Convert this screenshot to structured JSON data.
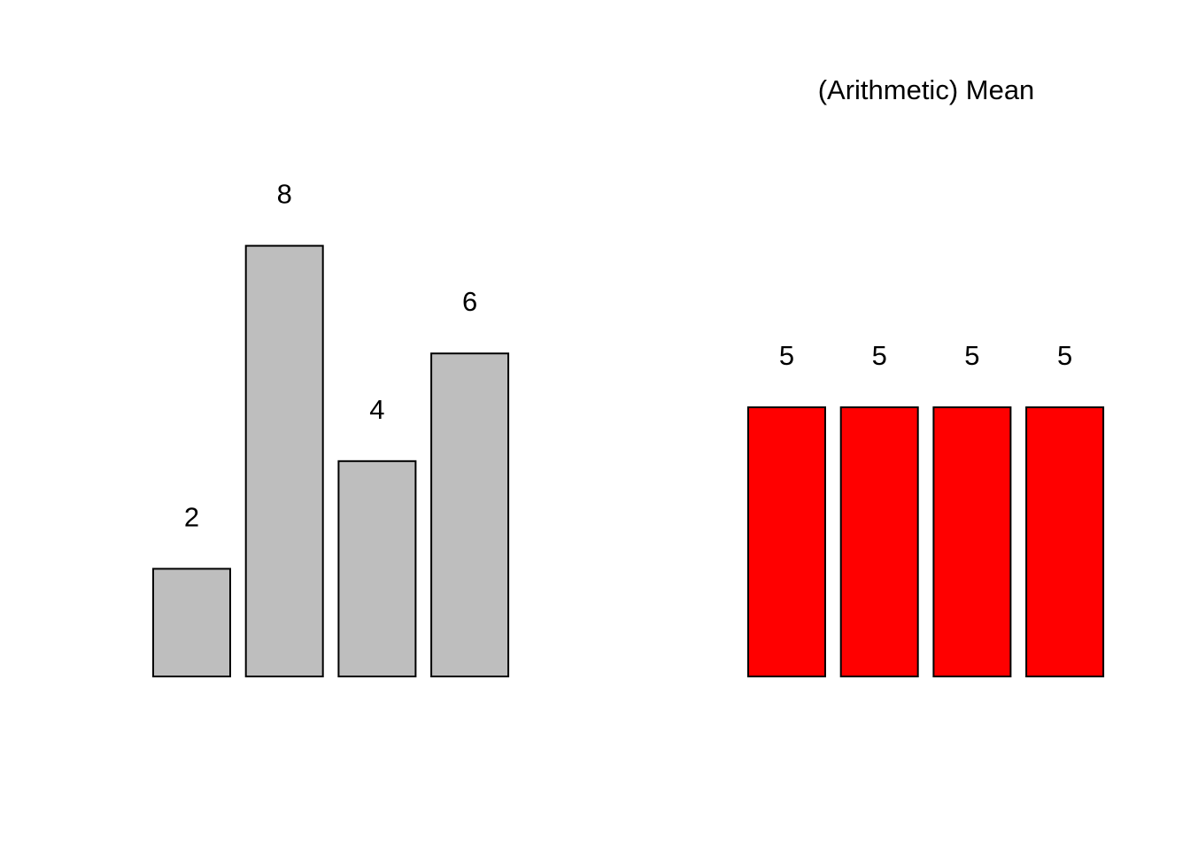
{
  "chart_data": [
    {
      "type": "bar",
      "title": "",
      "xlabel": "",
      "ylabel": "",
      "values": [
        2,
        8,
        4,
        6
      ],
      "data_labels": [
        "2",
        "8",
        "4",
        "6"
      ],
      "ylim": [
        0,
        10
      ],
      "grid": false,
      "axes_visible": false,
      "colors": {
        "fill": "#bebebe",
        "border": "#000000"
      }
    },
    {
      "type": "bar",
      "title": "(Arithmetic) Mean",
      "xlabel": "",
      "ylabel": "",
      "values": [
        5,
        5,
        5,
        5
      ],
      "data_labels": [
        "5",
        "5",
        "5",
        "5"
      ],
      "ylim": [
        0,
        10
      ],
      "grid": false,
      "axes_visible": false,
      "colors": {
        "fill": "#ff0000",
        "border": "#000000"
      }
    }
  ]
}
